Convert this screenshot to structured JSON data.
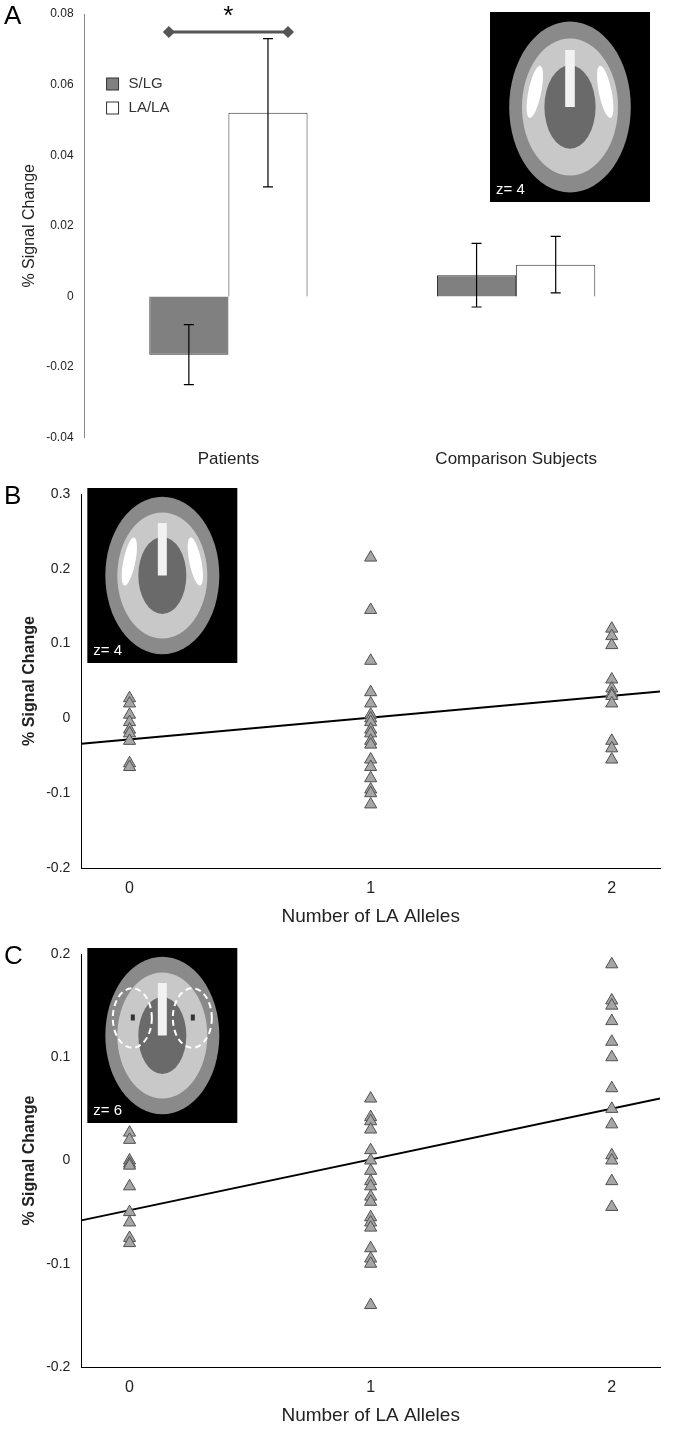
{
  "chart_data": [
    {
      "type": "bar",
      "title": "A",
      "categories": [
        "Patients",
        "Comparison Subjects"
      ],
      "series": [
        {
          "name": "S/LG",
          "color": "#808080",
          "values": [
            -0.0165,
            0.006
          ],
          "errors": [
            0.0085,
            0.009
          ]
        },
        {
          "name": "LA/LA",
          "color": "#ffffff",
          "values": [
            0.052,
            0.009
          ],
          "errors": [
            0.021,
            0.008
          ]
        }
      ],
      "y_label": "% Signal Change",
      "ylim": [
        -0.04,
        0.08
      ],
      "yticks": [
        -0.04,
        -0.02,
        0,
        0.02,
        0.04,
        0.06,
        0.08
      ],
      "grid": false,
      "legend": "upper left",
      "significance": "*",
      "inset_label": "z= 4"
    },
    {
      "type": "scatter",
      "title": "B",
      "series": [
        {
          "type": "scatter",
          "marker": "triangle",
          "color": "#a6a6a6",
          "x": [
            0,
            0,
            0,
            0,
            0,
            0,
            0,
            0,
            0,
            1,
            1,
            1,
            1,
            1,
            1,
            1,
            1,
            1,
            1,
            1,
            1,
            1,
            1,
            1,
            1,
            1,
            1,
            2,
            2,
            2,
            2,
            2,
            2,
            2,
            2,
            2,
            2,
            2
          ],
          "values": [
            0.027,
            0.02,
            0.005,
            -0.005,
            -0.015,
            -0.02,
            -0.03,
            -0.06,
            -0.065,
            0.215,
            0.145,
            0.077,
            0.035,
            0.02,
            0.005,
            0,
            -0.005,
            -0.015,
            -0.02,
            -0.03,
            -0.035,
            -0.055,
            -0.065,
            -0.08,
            -0.095,
            -0.1,
            -0.115,
            0.12,
            0.11,
            0.098,
            0.052,
            0.04,
            0.033,
            0.03,
            0.02,
            -0.03,
            -0.04,
            -0.055
          ]
        },
        {
          "type": "line",
          "line_style": "solid",
          "color": "#000000",
          "x": [
            -0.2,
            2.2
          ],
          "values": [
            -0.034,
            0.036
          ]
        }
      ],
      "x_label": "Number of LA Alleles",
      "y_label": "% Signal Change",
      "xlim": [
        -0.2,
        2.2
      ],
      "xticks": [
        0,
        1,
        2
      ],
      "ylim": [
        -0.2,
        0.3
      ],
      "yticks": [
        -0.2,
        -0.1,
        0,
        0.1,
        0.2,
        0.3
      ],
      "grid": false,
      "inset_label": "z= 4"
    },
    {
      "type": "scatter",
      "title": "C",
      "series": [
        {
          "type": "scatter",
          "marker": "triangle",
          "color": "#a6a6a6",
          "x": [
            0,
            0,
            0,
            0,
            0,
            0,
            0,
            0,
            0,
            0,
            1,
            1,
            1,
            1,
            1,
            1,
            1,
            1,
            1,
            1,
            1,
            1,
            1,
            1,
            1,
            1,
            1,
            1,
            2,
            2,
            2,
            2,
            2,
            2,
            2,
            2,
            2,
            2,
            2,
            2,
            2
          ],
          "values": [
            0.027,
            0.02,
            0,
            -0.003,
            -0.005,
            -0.025,
            -0.05,
            -0.06,
            -0.075,
            -0.08,
            0.06,
            0.042,
            0.038,
            0.03,
            0.01,
            0,
            -0.01,
            -0.02,
            -0.025,
            -0.035,
            -0.04,
            -0.055,
            -0.06,
            -0.065,
            -0.085,
            -0.095,
            -0.1,
            -0.14,
            0.19,
            0.155,
            0.15,
            0.135,
            0.115,
            0.1,
            0.07,
            0.05,
            0.035,
            0.005,
            0,
            -0.02,
            -0.045
          ]
        },
        {
          "type": "line",
          "line_style": "solid",
          "color": "#000000",
          "x": [
            -0.2,
            2.2
          ],
          "values": [
            -0.058,
            0.06
          ]
        }
      ],
      "x_label": "Number of LA Alleles",
      "y_label": "% Signal Change",
      "xlim": [
        -0.2,
        2.2
      ],
      "xticks": [
        0,
        1,
        2
      ],
      "ylim": [
        -0.2,
        0.2
      ],
      "yticks": [
        -0.2,
        -0.1,
        0,
        0.1,
        0.2
      ],
      "grid": false,
      "inset_label": "z= 6"
    }
  ]
}
